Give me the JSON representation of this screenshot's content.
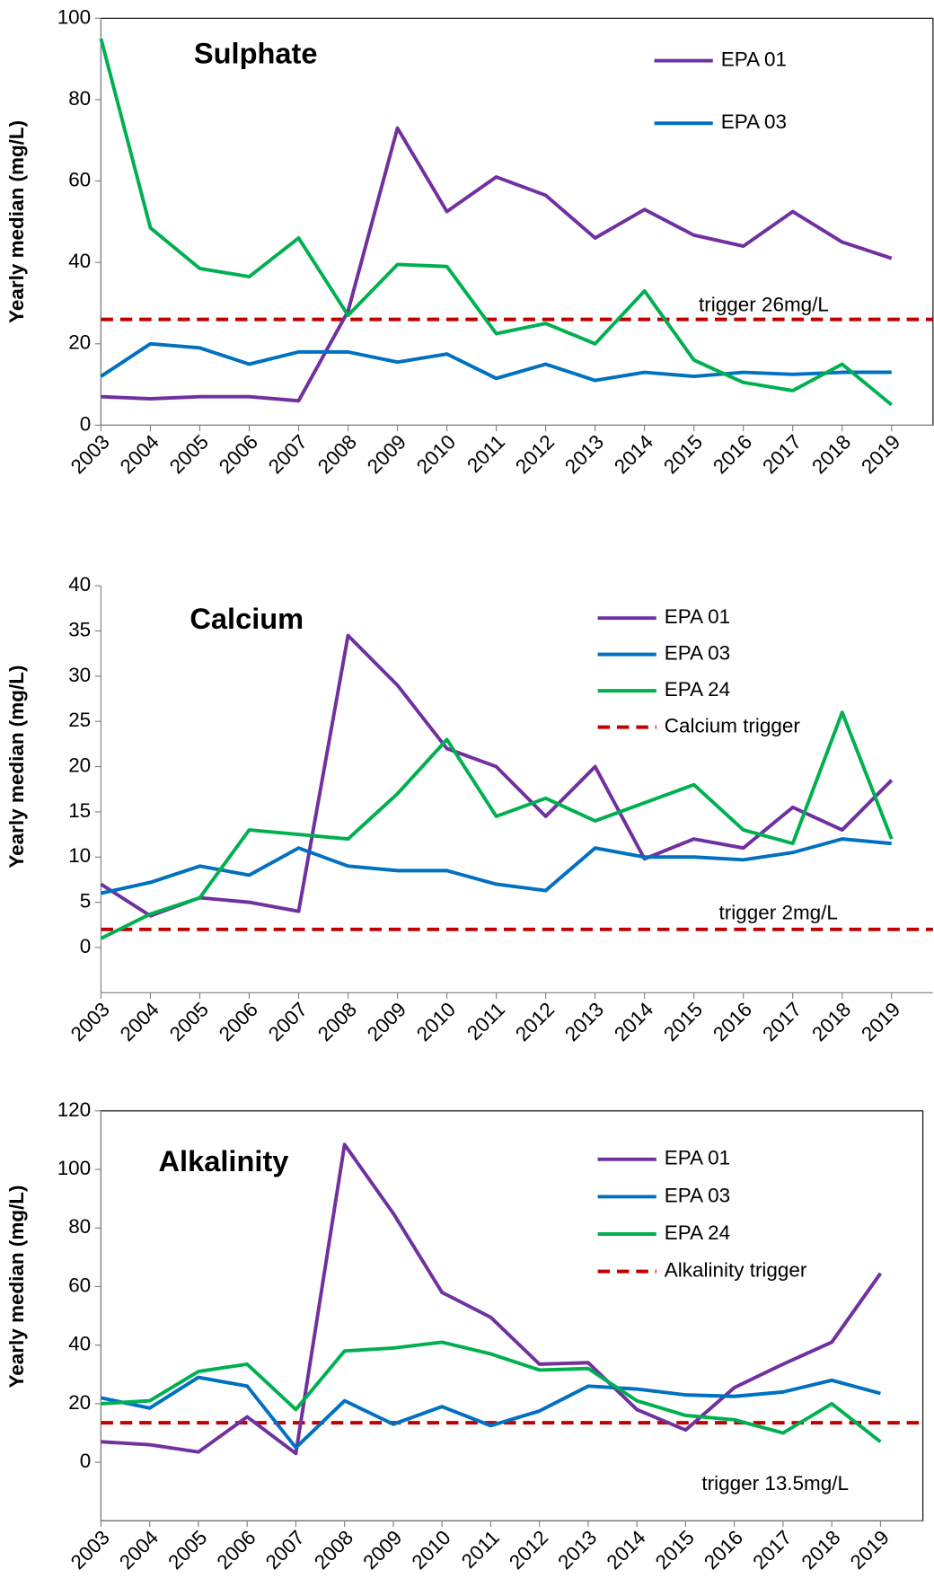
{
  "chart_data": [
    {
      "type": "line",
      "title": "Sulphate",
      "y_label": "Yearly median (mg/L)",
      "frame": true,
      "categories": [
        "2003",
        "2004",
        "2005",
        "2006",
        "2007",
        "2008",
        "2009",
        "2010",
        "2011",
        "2012",
        "2013",
        "2014",
        "2015",
        "2016",
        "2017",
        "2018",
        "2019"
      ],
      "ylim": [
        0,
        100
      ],
      "yticks": [
        0,
        20,
        40,
        60,
        80,
        100
      ],
      "series": [
        {
          "name": "EPA 01",
          "color": "#7030a0",
          "values": [
            7,
            6.5,
            7,
            7,
            6,
            28,
            73,
            52.5,
            61,
            56.5,
            46,
            53,
            46.7,
            44,
            52.5,
            45,
            41
          ]
        },
        {
          "name": "EPA 03",
          "color": "#0070c0",
          "values": [
            12,
            20,
            19,
            15,
            18,
            18,
            15.5,
            17.5,
            11.5,
            15,
            11,
            13,
            12,
            13,
            12.5,
            13,
            13
          ]
        },
        {
          "color": "#00b050",
          "values": [
            95,
            48.5,
            38.5,
            36.5,
            46,
            27,
            39.5,
            39,
            22.5,
            25,
            20,
            33,
            16,
            10.5,
            8.5,
            15,
            5
          ]
        }
      ],
      "trigger": {
        "value": 26,
        "color": "#c00000",
        "annotation": "trigger 26mg/L"
      }
    },
    {
      "type": "line",
      "title": "Calcium",
      "y_label": "Yearly median (mg/L)",
      "frame": false,
      "categories": [
        "2003",
        "2004",
        "2005",
        "2006",
        "2007",
        "2008",
        "2009",
        "2010",
        "2011",
        "2012",
        "2013",
        "2014",
        "2015",
        "2016",
        "2017",
        "2018",
        "2019"
      ],
      "ylim": [
        -5,
        40
      ],
      "yticks": [
        0,
        5,
        10,
        15,
        20,
        25,
        30,
        35,
        40
      ],
      "series": [
        {
          "name": "EPA 01",
          "color": "#7030a0",
          "values": [
            7,
            3.5,
            5.5,
            5,
            4,
            34.5,
            29,
            22,
            20,
            14.5,
            20,
            9.8,
            12,
            11,
            15.5,
            13,
            18.5
          ]
        },
        {
          "name": "EPA 03",
          "color": "#0070c0",
          "values": [
            6,
            7.2,
            9,
            8,
            11,
            9,
            8.5,
            8.5,
            7,
            6.3,
            11,
            10,
            10,
            9.7,
            10.5,
            12,
            11.5
          ]
        },
        {
          "name": "EPA 24",
          "color": "#00b050",
          "values": [
            1,
            3.7,
            5.5,
            13,
            12.5,
            12,
            17,
            23,
            14.5,
            16.5,
            14,
            16,
            18,
            13,
            11.5,
            26,
            12
          ]
        }
      ],
      "trigger": {
        "name": "Calcium trigger",
        "value": 2,
        "color": "#c00000",
        "annotation": "trigger 2mg/L"
      }
    },
    {
      "type": "line",
      "title": "Alkalinity",
      "y_label": "Yearly median (mg/L)",
      "frame": true,
      "categories": [
        "2003",
        "2004",
        "2005",
        "2006",
        "2007",
        "2008",
        "2009",
        "2010",
        "2011",
        "2012",
        "2013",
        "2014",
        "2015",
        "2016",
        "2017",
        "2018",
        "2019"
      ],
      "ylim": [
        -20,
        120
      ],
      "yticks": [
        0,
        20,
        40,
        60,
        80,
        100,
        120
      ],
      "series": [
        {
          "name": "EPA 01",
          "color": "#7030a0",
          "values": [
            7,
            6,
            3.5,
            15.5,
            3,
            108.5,
            85,
            58,
            49.5,
            33.5,
            34,
            18,
            11,
            25.5,
            33.5,
            41,
            64.5
          ]
        },
        {
          "name": "EPA 03",
          "color": "#0070c0",
          "values": [
            22,
            18.5,
            29,
            26,
            5,
            21,
            13,
            19,
            12.5,
            17.5,
            26,
            25,
            23,
            22.5,
            24,
            28,
            23.5
          ]
        },
        {
          "name": "EPA 24",
          "color": "#00b050",
          "values": [
            20,
            21,
            31,
            33.5,
            18,
            38,
            39,
            41,
            37,
            31.5,
            32,
            21,
            16,
            14.5,
            10,
            20,
            7
          ]
        }
      ],
      "trigger": {
        "name": "Alkalinity trigger",
        "value": 13.5,
        "color": "#c00000",
        "annotation": "trigger 13.5mg/L"
      }
    }
  ]
}
